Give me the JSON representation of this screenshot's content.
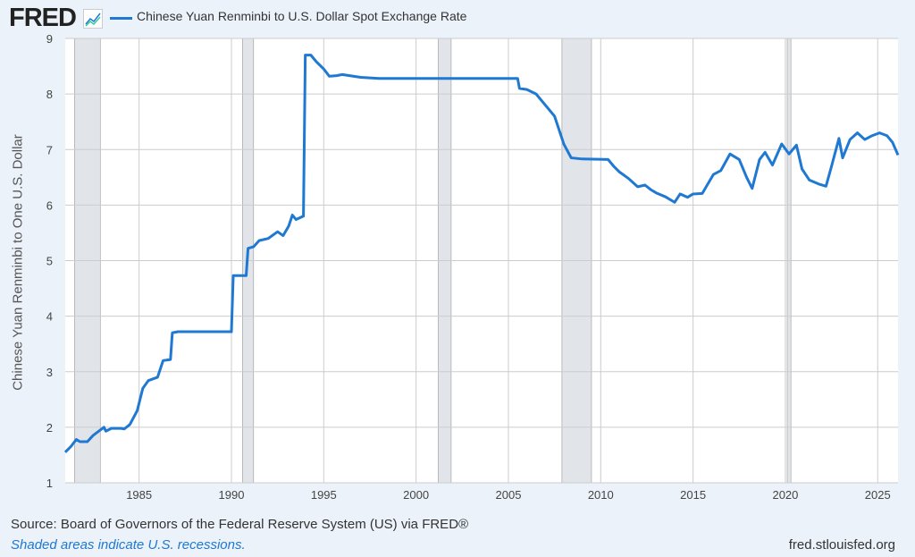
{
  "header": {
    "logo": "FRED",
    "logo_icon": "chart-line-icon"
  },
  "chart_data": {
    "type": "line",
    "title": "Chinese Yuan Renminbi to U.S. Dollar Spot Exchange Rate",
    "xlabel": "",
    "ylabel": "Chinese Yuan Renminbi to One U.S. Dollar",
    "xlim": [
      1981.0,
      2026.1
    ],
    "ylim": [
      1,
      9
    ],
    "yticks": [
      1,
      2,
      3,
      4,
      5,
      6,
      7,
      8,
      9
    ],
    "xticks": [
      1985,
      1990,
      1995,
      2000,
      2005,
      2010,
      2015,
      2020,
      2025
    ],
    "grid": true,
    "color": "#1f78d1",
    "recessions": [
      [
        1981.5,
        1982.9
      ],
      [
        1990.6,
        1991.2
      ],
      [
        2001.2,
        2001.9
      ],
      [
        2007.9,
        2009.5
      ],
      [
        2020.1,
        2020.3
      ]
    ],
    "series": [
      {
        "name": "Chinese Yuan Renminbi to U.S. Dollar Spot Exchange Rate",
        "points": [
          [
            1981.0,
            1.55
          ],
          [
            1981.3,
            1.65
          ],
          [
            1981.6,
            1.78
          ],
          [
            1981.8,
            1.74
          ],
          [
            1982.2,
            1.74
          ],
          [
            1982.5,
            1.85
          ],
          [
            1982.9,
            1.95
          ],
          [
            1983.1,
            2.0
          ],
          [
            1983.2,
            1.93
          ],
          [
            1983.5,
            1.98
          ],
          [
            1984.0,
            1.98
          ],
          [
            1984.2,
            1.97
          ],
          [
            1984.5,
            2.05
          ],
          [
            1984.9,
            2.3
          ],
          [
            1985.2,
            2.7
          ],
          [
            1985.5,
            2.84
          ],
          [
            1986.0,
            2.9
          ],
          [
            1986.3,
            3.2
          ],
          [
            1986.7,
            3.22
          ],
          [
            1986.8,
            3.7
          ],
          [
            1987.1,
            3.72
          ],
          [
            1990.0,
            3.72
          ],
          [
            1990.1,
            4.73
          ],
          [
            1990.8,
            4.73
          ],
          [
            1990.9,
            5.22
          ],
          [
            1991.2,
            5.25
          ],
          [
            1991.5,
            5.36
          ],
          [
            1992.0,
            5.4
          ],
          [
            1992.5,
            5.52
          ],
          [
            1992.8,
            5.45
          ],
          [
            1993.1,
            5.62
          ],
          [
            1993.3,
            5.82
          ],
          [
            1993.5,
            5.74
          ],
          [
            1993.9,
            5.8
          ],
          [
            1994.0,
            8.7
          ],
          [
            1994.3,
            8.7
          ],
          [
            1994.6,
            8.58
          ],
          [
            1995.0,
            8.45
          ],
          [
            1995.3,
            8.32
          ],
          [
            1995.7,
            8.33
          ],
          [
            1996.0,
            8.35
          ],
          [
            1997.0,
            8.3
          ],
          [
            1998.0,
            8.28
          ],
          [
            2005.5,
            8.28
          ],
          [
            2005.6,
            8.1
          ],
          [
            2006.0,
            8.08
          ],
          [
            2006.5,
            8.0
          ],
          [
            2007.0,
            7.8
          ],
          [
            2007.5,
            7.6
          ],
          [
            2008.0,
            7.1
          ],
          [
            2008.4,
            6.85
          ],
          [
            2009.0,
            6.83
          ],
          [
            2010.4,
            6.82
          ],
          [
            2010.7,
            6.7
          ],
          [
            2011.0,
            6.6
          ],
          [
            2011.5,
            6.48
          ],
          [
            2012.0,
            6.33
          ],
          [
            2012.4,
            6.36
          ],
          [
            2012.7,
            6.28
          ],
          [
            2013.0,
            6.22
          ],
          [
            2013.5,
            6.15
          ],
          [
            2014.0,
            6.05
          ],
          [
            2014.3,
            6.2
          ],
          [
            2014.7,
            6.14
          ],
          [
            2015.0,
            6.2
          ],
          [
            2015.5,
            6.21
          ],
          [
            2015.8,
            6.38
          ],
          [
            2016.1,
            6.55
          ],
          [
            2016.5,
            6.62
          ],
          [
            2017.0,
            6.92
          ],
          [
            2017.5,
            6.82
          ],
          [
            2017.9,
            6.5
          ],
          [
            2018.2,
            6.3
          ],
          [
            2018.6,
            6.82
          ],
          [
            2018.9,
            6.95
          ],
          [
            2019.3,
            6.72
          ],
          [
            2019.8,
            7.1
          ],
          [
            2020.2,
            6.92
          ],
          [
            2020.6,
            7.08
          ],
          [
            2020.9,
            6.65
          ],
          [
            2021.3,
            6.45
          ],
          [
            2021.8,
            6.38
          ],
          [
            2022.2,
            6.34
          ],
          [
            2022.5,
            6.7
          ],
          [
            2022.9,
            7.2
          ],
          [
            2023.1,
            6.85
          ],
          [
            2023.5,
            7.18
          ],
          [
            2023.9,
            7.3
          ],
          [
            2024.3,
            7.18
          ],
          [
            2024.7,
            7.25
          ],
          [
            2025.1,
            7.3
          ],
          [
            2025.5,
            7.25
          ],
          [
            2025.8,
            7.13
          ],
          [
            2026.1,
            6.9
          ]
        ]
      }
    ]
  },
  "footer": {
    "source": "Source: Board of Governors of the Federal Reserve System (US) via FRED®",
    "note": "Shaded areas indicate U.S. recessions.",
    "site": "fred.stlouisfed.org"
  }
}
